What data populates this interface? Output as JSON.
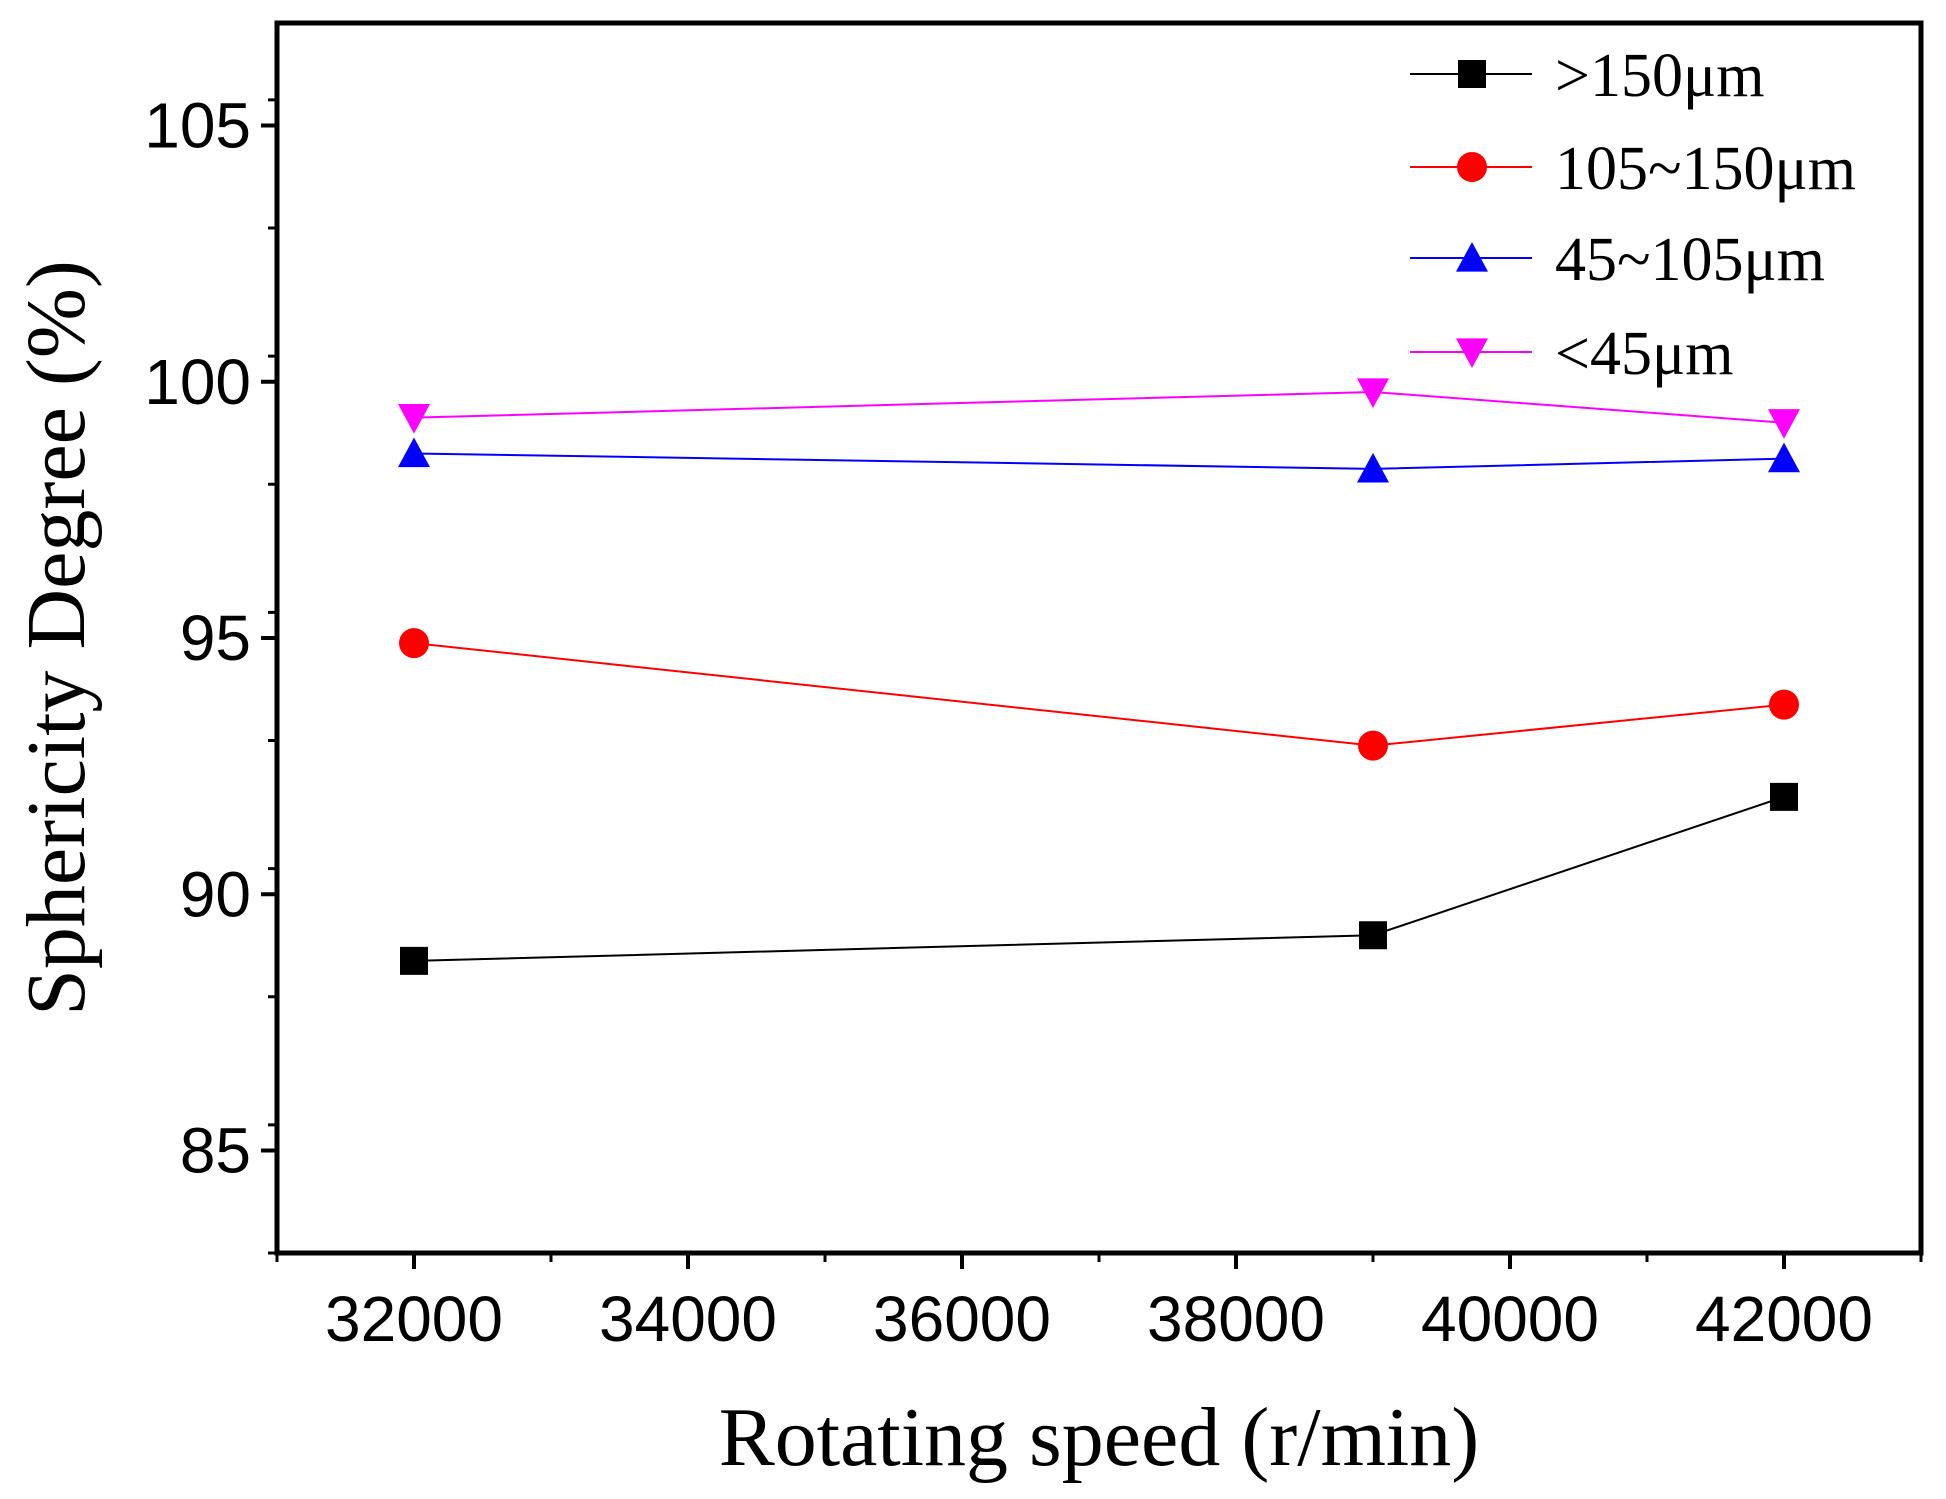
{
  "chart_data": {
    "type": "line",
    "title": "",
    "xlabel": "Rotating speed (r/min)",
    "ylabel": "Sphericity Degree (%)",
    "xlim": [
      31000,
      43000
    ],
    "ylim": [
      83,
      107
    ],
    "xticks": [
      32000,
      34000,
      36000,
      38000,
      40000,
      42000
    ],
    "xtick_labels": [
      "32000",
      "34000",
      "36000",
      "38000",
      "40000",
      "42000"
    ],
    "yticks": [
      85,
      90,
      95,
      100,
      105
    ],
    "ytick_labels": [
      "85",
      "90",
      "95",
      "100",
      "105"
    ],
    "grid": false,
    "legend_position": "top-right",
    "x": [
      32000,
      39000,
      42000
    ],
    "series": [
      {
        "name": ">150μm",
        "values": [
          88.7,
          89.2,
          91.9
        ],
        "color": "#000000",
        "marker": "square"
      },
      {
        "name": "105~150μm",
        "values": [
          94.9,
          92.9,
          93.7
        ],
        "color": "#ff0000",
        "marker": "circle"
      },
      {
        "name": "45~105μm",
        "values": [
          98.6,
          98.3,
          98.5
        ],
        "color": "#0000ff",
        "marker": "triangle-up"
      },
      {
        "name": "<45μm",
        "values": [
          99.3,
          99.8,
          99.2
        ],
        "color": "#ff00ff",
        "marker": "triangle-down"
      }
    ]
  }
}
